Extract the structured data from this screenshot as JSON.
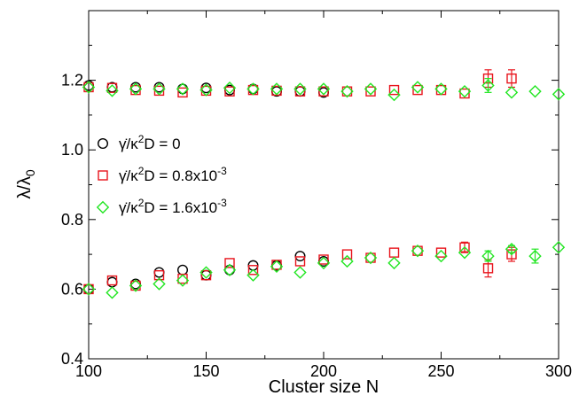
{
  "chart_data": {
    "type": "scatter",
    "xlabel": "Cluster size N",
    "ylabel": "λ/λ",
    "ylabel_subscript": "0",
    "xlim": [
      100,
      300
    ],
    "ylim": [
      0.4,
      1.4
    ],
    "x_ticks": [
      100,
      150,
      200,
      250,
      300
    ],
    "x_tick_labels": [
      "100",
      "150",
      "200",
      "250",
      "300"
    ],
    "y_ticks": [
      0.4,
      0.6,
      0.8,
      1.0,
      1.2
    ],
    "y_tick_labels": [
      "0.4",
      "0.6",
      "0.8",
      "1.0",
      "1.2"
    ],
    "grid": false,
    "legend_position": "left",
    "series": [
      {
        "name": "γ̇/κ²D = 0",
        "legend_parts": [
          "γ̇/κ",
          "2",
          "D = 0",
          ""
        ],
        "marker": "circle",
        "color": "#000000",
        "upper_x": [
          100,
          110,
          120,
          130,
          140,
          150,
          160,
          170,
          180,
          190,
          200
        ],
        "upper_y": [
          1.185,
          1.18,
          1.18,
          1.18,
          1.175,
          1.178,
          1.172,
          1.175,
          1.168,
          1.168,
          1.165
        ],
        "upper_err": [
          0,
          0,
          0,
          0,
          0,
          0,
          0,
          0,
          0,
          0,
          0
        ],
        "lower_x": [
          100,
          110,
          120,
          130,
          140,
          150,
          160,
          170,
          180,
          190,
          200
        ],
        "lower_y": [
          0.6,
          0.62,
          0.615,
          0.648,
          0.655,
          0.64,
          0.655,
          0.668,
          0.668,
          0.695,
          0.68
        ],
        "lower_err": [
          0,
          0,
          0,
          0,
          0,
          0,
          0,
          0,
          0,
          0,
          0
        ]
      },
      {
        "name": "γ̇/κ²D = 0.8x10⁻³",
        "legend_parts": [
          "γ̇/κ",
          "2",
          "D = 0.8x10",
          "-3"
        ],
        "marker": "square",
        "color": "#e8141c",
        "upper_x": [
          100,
          110,
          120,
          130,
          140,
          150,
          160,
          170,
          180,
          190,
          200,
          210,
          220,
          230,
          240,
          250,
          260,
          270,
          280
        ],
        "upper_y": [
          1.18,
          1.178,
          1.172,
          1.17,
          1.165,
          1.17,
          1.168,
          1.172,
          1.17,
          1.168,
          1.168,
          1.168,
          1.168,
          1.172,
          1.172,
          1.172,
          1.162,
          1.205,
          1.205
        ],
        "upper_err": [
          0,
          0,
          0,
          0,
          0,
          0,
          0,
          0,
          0,
          0,
          0,
          0,
          0,
          0,
          0,
          0,
          0,
          0.025,
          0.025
        ],
        "lower_x": [
          100,
          110,
          120,
          130,
          140,
          150,
          160,
          170,
          180,
          190,
          200,
          210,
          220,
          230,
          240,
          250,
          260,
          270,
          280
        ],
        "lower_y": [
          0.6,
          0.625,
          0.61,
          0.64,
          0.63,
          0.64,
          0.675,
          0.655,
          0.67,
          0.68,
          0.685,
          0.7,
          0.69,
          0.705,
          0.71,
          0.705,
          0.72,
          0.66,
          0.7
        ],
        "lower_err": [
          0,
          0,
          0,
          0,
          0,
          0,
          0,
          0,
          0,
          0,
          0,
          0,
          0,
          0,
          0,
          0,
          0.015,
          0.025,
          0.02
        ]
      },
      {
        "name": "γ̇/κ²D = 1.6x10⁻³",
        "legend_parts": [
          "γ̇/κ",
          "2",
          "D = 1.6x10",
          "-3"
        ],
        "marker": "diamond",
        "color": "#22e622",
        "upper_x": [
          100,
          110,
          120,
          130,
          140,
          150,
          160,
          170,
          180,
          190,
          200,
          210,
          220,
          230,
          240,
          250,
          260,
          270,
          280,
          290,
          300
        ],
        "upper_y": [
          1.18,
          1.17,
          1.175,
          1.175,
          1.175,
          1.172,
          1.178,
          1.175,
          1.175,
          1.175,
          1.175,
          1.168,
          1.175,
          1.158,
          1.18,
          1.175,
          1.168,
          1.185,
          1.165,
          1.168,
          1.16
        ],
        "upper_err": [
          0,
          0,
          0,
          0,
          0,
          0,
          0,
          0,
          0,
          0,
          0,
          0,
          0,
          0,
          0,
          0,
          0,
          0.02,
          0,
          0,
          0
        ],
        "lower_x": [
          100,
          110,
          120,
          130,
          140,
          150,
          160,
          170,
          180,
          190,
          200,
          210,
          220,
          230,
          240,
          250,
          260,
          270,
          280,
          290,
          300
        ],
        "lower_y": [
          0.6,
          0.59,
          0.61,
          0.615,
          0.625,
          0.648,
          0.655,
          0.64,
          0.665,
          0.648,
          0.675,
          0.68,
          0.69,
          0.675,
          0.71,
          0.695,
          0.705,
          0.695,
          0.715,
          0.695,
          0.72
        ],
        "lower_err": [
          0,
          0,
          0,
          0,
          0,
          0,
          0,
          0,
          0,
          0,
          0,
          0,
          0,
          0,
          0,
          0,
          0,
          0.015,
          0.01,
          0.02,
          0
        ]
      }
    ]
  }
}
